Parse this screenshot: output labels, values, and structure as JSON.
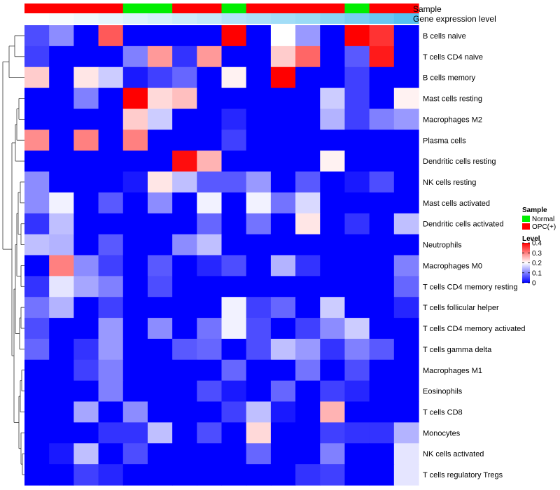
{
  "chart_data": {
    "type": "heatmap",
    "annotation_rows": [
      "Sample",
      "Gene expression level"
    ],
    "sample_groups": [
      "OPC(+)",
      "OPC(+)",
      "OPC(+)",
      "OPC(+)",
      "Normal",
      "Normal",
      "OPC(+)",
      "OPC(+)",
      "Normal",
      "OPC(+)",
      "OPC(+)",
      "OPC(+)",
      "OPC(+)",
      "Normal",
      "OPC(+)",
      "OPC(+)"
    ],
    "gene_expression_levels": [
      0.0,
      0.05,
      0.1,
      0.15,
      0.2,
      0.25,
      0.3,
      0.35,
      0.45,
      0.5,
      0.55,
      0.6,
      0.7,
      0.8,
      0.9,
      1.0
    ],
    "rows": [
      "B cells naive",
      "T cells CD4 naive",
      "B cells memory",
      "Mast cells resting",
      "Macrophages M2",
      "Plasma cells",
      "Dendritic cells resting",
      "NK cells resting",
      "Mast cells activated",
      "Dendritic cells activated",
      "Neutrophils",
      "Macrophages M0",
      "T cells CD4 memory resting",
      "T cells follicular helper",
      "T cells CD4 memory activated",
      "T cells gamma delta",
      "Macrophages M1",
      "Eosinophils",
      "T cells CD8",
      "Monocytes",
      "NK cells activated",
      "T cells regulatory  Tregs"
    ],
    "values": [
      [
        0.06,
        0.11,
        0.0,
        0.33,
        0.0,
        0.0,
        0.0,
        0.0,
        0.4,
        0.0,
        0.2,
        0.12,
        0.0,
        0.4,
        0.36,
        0.0
      ],
      [
        0.05,
        0.0,
        0.0,
        0.0,
        0.1,
        0.28,
        0.04,
        0.28,
        0.0,
        0.0,
        0.24,
        0.32,
        0.0,
        0.07,
        0.38,
        0.0
      ],
      [
        0.24,
        0.0,
        0.22,
        0.16,
        0.02,
        0.05,
        0.08,
        0.0,
        0.21,
        0.0,
        0.4,
        0.0,
        0.0,
        0.05,
        0.0,
        0.0
      ],
      [
        0.0,
        0.0,
        0.1,
        0.0,
        0.4,
        0.23,
        0.25,
        0.0,
        0.0,
        0.0,
        0.0,
        0.0,
        0.16,
        0.05,
        0.0,
        0.21
      ],
      [
        0.0,
        0.0,
        0.0,
        0.0,
        0.24,
        0.16,
        0.0,
        0.0,
        0.03,
        0.0,
        0.0,
        0.0,
        0.14,
        0.05,
        0.1,
        0.12
      ],
      [
        0.29,
        0.0,
        0.3,
        0.0,
        0.3,
        0.0,
        0.0,
        0.0,
        0.05,
        0.0,
        0.0,
        0.0,
        0.0,
        0.0,
        0.0,
        0.0
      ],
      [
        0.0,
        0.0,
        0.0,
        0.0,
        0.0,
        0.0,
        0.39,
        0.26,
        0.0,
        0.0,
        0.0,
        0.0,
        0.21,
        0.0,
        0.0,
        0.0
      ],
      [
        0.11,
        0.0,
        0.0,
        0.0,
        0.02,
        0.22,
        0.15,
        0.07,
        0.07,
        0.12,
        0.0,
        0.07,
        0.0,
        0.02,
        0.06,
        0.0
      ],
      [
        0.11,
        0.19,
        0.0,
        0.07,
        0.0,
        0.11,
        0.0,
        0.19,
        0.0,
        0.19,
        0.09,
        0.17,
        0.0,
        0.0,
        0.0,
        0.0
      ],
      [
        0.04,
        0.15,
        0.0,
        0.0,
        0.0,
        0.0,
        0.0,
        0.08,
        0.0,
        0.09,
        0.0,
        0.22,
        0.0,
        0.04,
        0.0,
        0.15
      ],
      [
        0.15,
        0.14,
        0.0,
        0.07,
        0.0,
        0.0,
        0.11,
        0.15,
        0.0,
        0.0,
        0.0,
        0.0,
        0.0,
        0.0,
        0.0,
        0.0
      ],
      [
        0.0,
        0.3,
        0.11,
        0.05,
        0.0,
        0.07,
        0.0,
        0.03,
        0.06,
        0.0,
        0.14,
        0.04,
        0.0,
        0.0,
        0.0,
        0.1
      ],
      [
        0.04,
        0.18,
        0.13,
        0.1,
        0.0,
        0.06,
        0.0,
        0.0,
        0.0,
        0.0,
        0.0,
        0.0,
        0.0,
        0.0,
        0.0,
        0.08
      ],
      [
        0.09,
        0.14,
        0.0,
        0.05,
        0.0,
        0.0,
        0.0,
        0.0,
        0.19,
        0.05,
        0.08,
        0.0,
        0.16,
        0.0,
        0.0,
        0.03
      ],
      [
        0.06,
        0.0,
        0.0,
        0.12,
        0.0,
        0.11,
        0.0,
        0.09,
        0.19,
        0.06,
        0.0,
        0.05,
        0.11,
        0.16,
        0.0,
        0.0
      ],
      [
        0.08,
        0.0,
        0.04,
        0.12,
        0.0,
        0.0,
        0.07,
        0.08,
        0.0,
        0.06,
        0.15,
        0.12,
        0.04,
        0.1,
        0.07,
        0.0
      ],
      [
        0.0,
        0.0,
        0.05,
        0.1,
        0.0,
        0.0,
        0.0,
        0.0,
        0.08,
        0.0,
        0.0,
        0.09,
        0.0,
        0.06,
        0.0,
        0.0
      ],
      [
        0.0,
        0.0,
        0.0,
        0.1,
        0.0,
        0.0,
        0.0,
        0.06,
        0.02,
        0.0,
        0.08,
        0.0,
        0.05,
        0.03,
        0.0,
        0.0
      ],
      [
        0.0,
        0.0,
        0.13,
        0.0,
        0.11,
        0.0,
        0.0,
        0.0,
        0.05,
        0.15,
        0.02,
        0.0,
        0.26,
        0.0,
        0.0,
        0.0
      ],
      [
        0.0,
        0.0,
        0.0,
        0.04,
        0.04,
        0.15,
        0.0,
        0.06,
        0.0,
        0.23,
        0.0,
        0.0,
        0.05,
        0.04,
        0.04,
        0.14
      ],
      [
        0.0,
        0.02,
        0.15,
        0.0,
        0.06,
        0.0,
        0.0,
        0.0,
        0.0,
        0.08,
        0.0,
        0.0,
        0.1,
        0.0,
        0.0,
        0.18
      ],
      [
        0.0,
        0.0,
        0.05,
        0.03,
        0.0,
        0.0,
        0.0,
        0.0,
        0.0,
        0.0,
        0.0,
        0.04,
        0.05,
        0.0,
        0.0,
        0.18
      ]
    ],
    "legend": {
      "sample_title": "Sample",
      "sample_entries": [
        {
          "label": "Normal",
          "color": "#00ee00"
        },
        {
          "label": "OPC(+)",
          "color": "#ff0000"
        }
      ],
      "level_title": "Level",
      "level_ticks": [
        "0",
        "0.1",
        "0.2",
        "0.3",
        "0.4"
      ],
      "level_tick_values": [
        0,
        0.1,
        0.2,
        0.3,
        0.4
      ],
      "range": [
        0,
        0.4
      ]
    },
    "colors": {
      "low": "#0000ff",
      "mid": "#ffffff",
      "high": "#ff0000",
      "gene_low": "#ffffff",
      "gene_high": "#56c1f0",
      "dendrogram": "#333333"
    }
  }
}
